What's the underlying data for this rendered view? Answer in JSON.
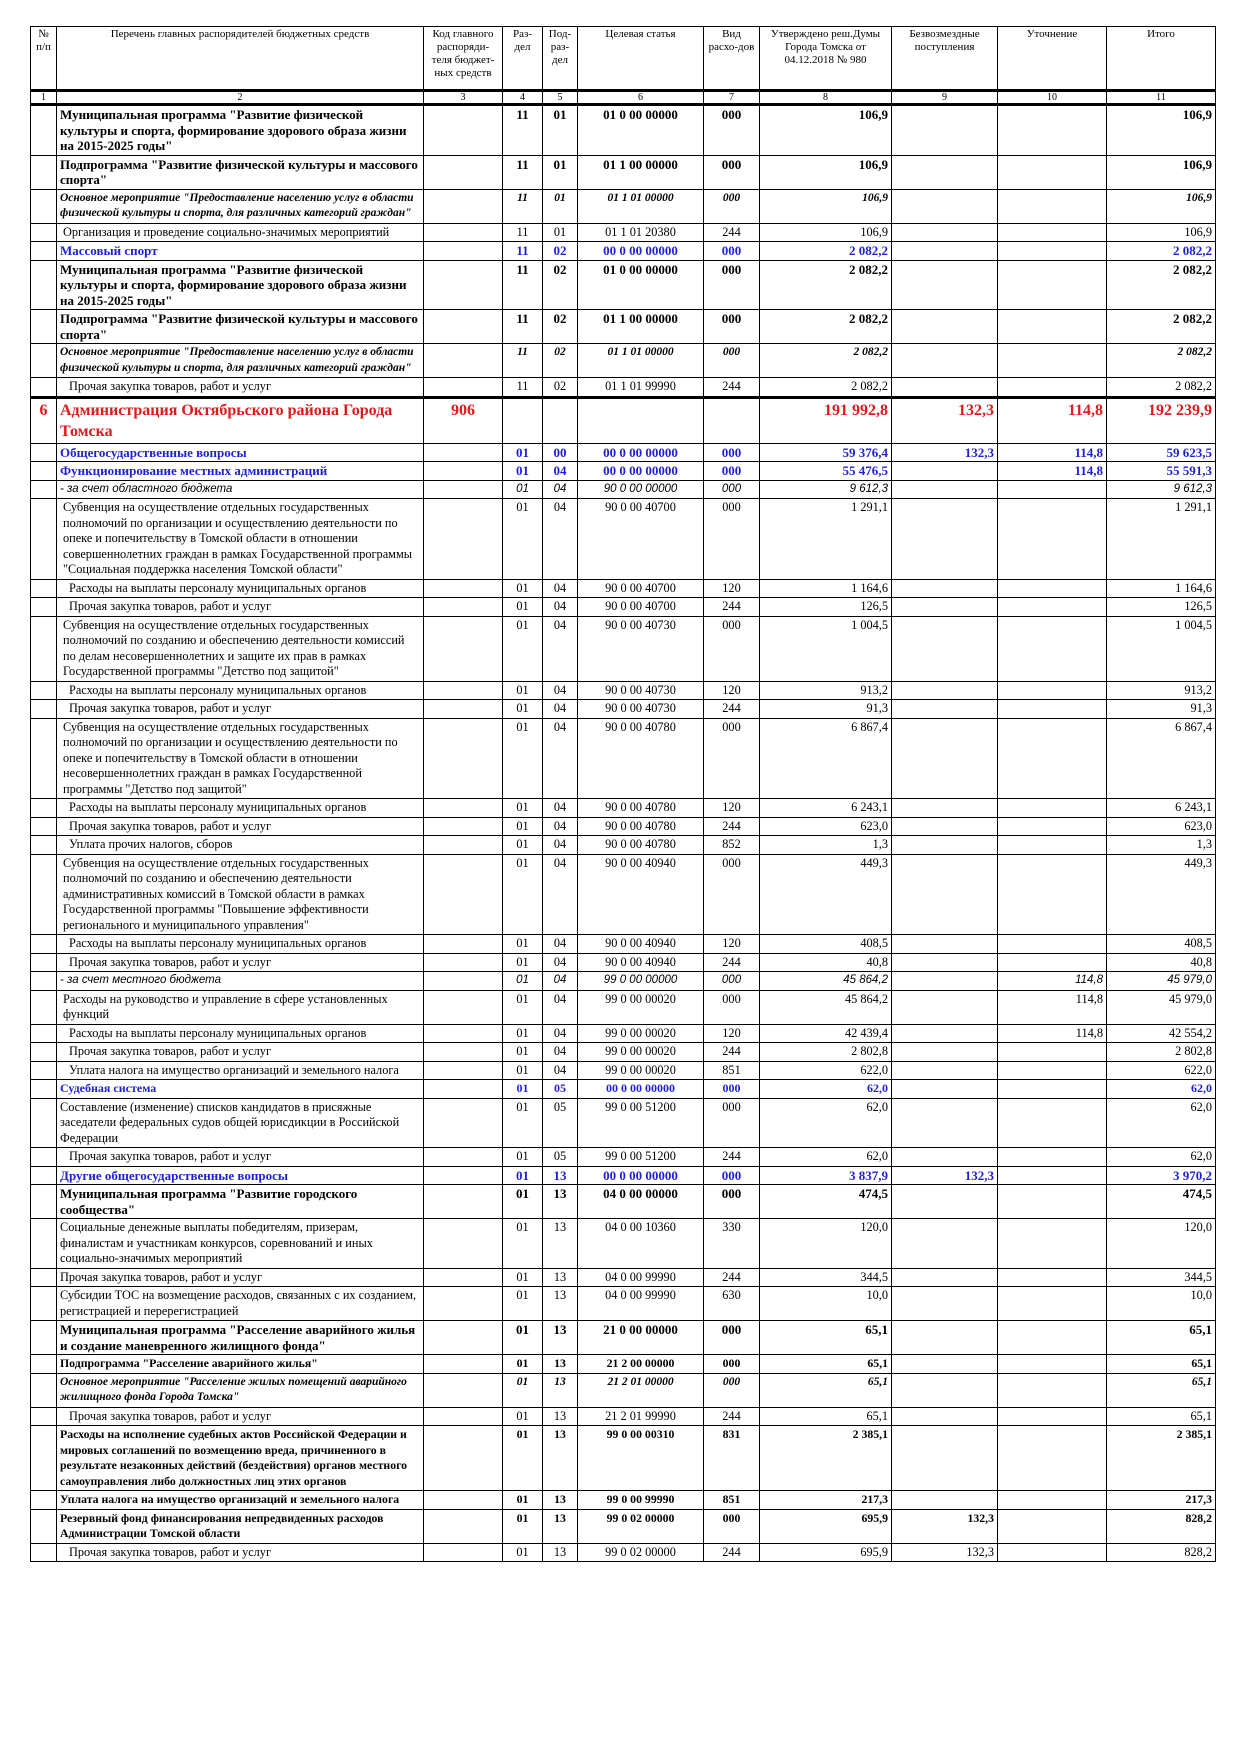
{
  "header": {
    "columns": [
      "№ п/п",
      "Перечень главных распорядителей бюджетных средств",
      "Код главного распоряди-теля бюджет-ных средств",
      "Раз-дел",
      "Под-раз-дел",
      "Целевая статья",
      "Вид расхо-дов",
      "Утверждено реш.Думы Города Томска от 04.12.2018 № 980",
      "Безвозмездные поступления",
      "Уточнение",
      "Итого"
    ],
    "numbers": [
      "1",
      "2",
      "3",
      "4",
      "5",
      "6",
      "7",
      "8",
      "9",
      "10",
      "11"
    ]
  },
  "rows": [
    {
      "style": "bold",
      "cells": [
        null,
        "Муниципальная программа \"Развитие физической культуры и спорта, формирование здорового образа жизни на 2015-2025 годы\"",
        null,
        "11",
        "01",
        "01 0 00 00000",
        "000",
        "106,9",
        null,
        null,
        "106,9"
      ]
    },
    {
      "style": "bold",
      "cells": [
        null,
        "Подпрограмма \"Развитие физической культуры и массового спорта\"",
        null,
        "11",
        "01",
        "01 1 00 00000",
        "000",
        "106,9",
        null,
        null,
        "106,9"
      ]
    },
    {
      "style": "bold-italic",
      "cells": [
        null,
        "Основное мероприятие \"Предоставление населению услуг в области физической культуры и спорта, для различных категорий граждан\"",
        null,
        "11",
        "01",
        "01 1 01 00000",
        "000",
        "106,9",
        null,
        null,
        "106,9"
      ]
    },
    {
      "style": "normal",
      "cells": [
        null,
        "Организация и проведение социально-значимых мероприятий",
        null,
        "11",
        "01",
        "01 1 01 20380",
        "244",
        "106,9",
        null,
        null,
        "106,9"
      ]
    },
    {
      "style": "blue",
      "cells": [
        null,
        "Массовый спорт",
        null,
        "11",
        "02",
        "00 0 00 00000",
        "000",
        "2 082,2",
        null,
        null,
        "2 082,2"
      ]
    },
    {
      "style": "bold",
      "cells": [
        null,
        "Муниципальная программа \"Развитие физической культуры и спорта, формирование здорового образа жизни на 2015-2025 годы\"",
        null,
        "11",
        "02",
        "01 0 00 00000",
        "000",
        "2 082,2",
        null,
        null,
        "2 082,2"
      ]
    },
    {
      "style": "bold",
      "cells": [
        null,
        "Подпрограмма \"Развитие физической культуры и массового спорта\"",
        null,
        "11",
        "02",
        "01 1 00 00000",
        "000",
        "2 082,2",
        null,
        null,
        "2 082,2"
      ]
    },
    {
      "style": "bold-italic",
      "cells": [
        null,
        "Основное мероприятие \"Предоставление населению услуг в области физической культуры и спорта, для различных категорий граждан\"",
        null,
        "11",
        "02",
        "01 1 01 00000",
        "000",
        "2 082,2",
        null,
        null,
        "2 082,2"
      ]
    },
    {
      "style": "indent",
      "cells": [
        null,
        "Прочая закупка товаров, работ и услуг",
        null,
        "11",
        "02",
        "01 1 01 99990",
        "244",
        "2 082,2",
        null,
        null,
        "2 082,2"
      ]
    },
    {
      "style": "red",
      "cells": [
        "6",
        "Администрация Октябрьского района Города Томска",
        "906",
        null,
        null,
        null,
        null,
        "191 992,8",
        "132,3",
        "114,8",
        "192 239,9"
      ]
    },
    {
      "style": "blue",
      "cells": [
        null,
        "Общегосударственные вопросы",
        null,
        "01",
        "00",
        "00 0 00 00000",
        "000",
        "59 376,4",
        "132,3",
        "114,8",
        "59 623,5"
      ]
    },
    {
      "style": "blue",
      "cells": [
        null,
        "Функционирование местных администраций",
        null,
        "01",
        "04",
        "00 0 00 00000",
        "000",
        "55 476,5",
        null,
        "114,8",
        "55 591,3"
      ]
    },
    {
      "style": "italic",
      "cells": [
        null,
        "- за счет областного бюджета",
        null,
        "01",
        "04",
        "90 0 00 00000",
        "000",
        "9 612,3",
        null,
        null,
        "9 612,3"
      ]
    },
    {
      "style": "normal",
      "cells": [
        null,
        "Субвенция на осуществление отдельных государственных полномочий по организации и осуществлению деятельности по опеке и попечительству в Томской области в отношении совершеннолетних граждан в рамках Государственной программы \"Социальная поддержка населения Томской области\"",
        null,
        "01",
        "04",
        "90 0 00 40700",
        "000",
        "1 291,1",
        null,
        null,
        "1 291,1"
      ]
    },
    {
      "style": "indent",
      "cells": [
        null,
        "Расходы на выплаты персоналу муниципальных органов",
        null,
        "01",
        "04",
        "90 0 00 40700",
        "120",
        "1 164,6",
        null,
        null,
        "1 164,6"
      ]
    },
    {
      "style": "indent",
      "cells": [
        null,
        "Прочая закупка товаров, работ и услуг",
        null,
        "01",
        "04",
        "90 0 00 40700",
        "244",
        "126,5",
        null,
        null,
        "126,5"
      ]
    },
    {
      "style": "normal",
      "cells": [
        null,
        "Субвенция на осуществление отдельных государственных полномочий по созданию и обеспечению деятельности комиссий по делам несовершеннолетних и защите их прав в рамках Государственной программы \"Детство под защитой\"",
        null,
        "01",
        "04",
        "90 0 00 40730",
        "000",
        "1 004,5",
        null,
        null,
        "1 004,5"
      ]
    },
    {
      "style": "indent",
      "cells": [
        null,
        "Расходы на выплаты персоналу муниципальных органов",
        null,
        "01",
        "04",
        "90 0 00 40730",
        "120",
        "913,2",
        null,
        null,
        "913,2"
      ]
    },
    {
      "style": "indent",
      "cells": [
        null,
        "Прочая закупка товаров, работ и услуг",
        null,
        "01",
        "04",
        "90 0 00 40730",
        "244",
        "91,3",
        null,
        null,
        "91,3"
      ]
    },
    {
      "style": "normal",
      "cells": [
        null,
        "Субвенция на осуществление отдельных государственных полномочий по организации и осуществлению деятельности по опеке и попечительству в Томской области в отношении несовершеннолетних граждан в рамках Государственной программы \"Детство под защитой\"",
        null,
        "01",
        "04",
        "90 0 00 40780",
        "000",
        "6 867,4",
        null,
        null,
        "6 867,4"
      ]
    },
    {
      "style": "indent",
      "cells": [
        null,
        "Расходы на выплаты персоналу муниципальных органов",
        null,
        "01",
        "04",
        "90 0 00 40780",
        "120",
        "6 243,1",
        null,
        null,
        "6 243,1"
      ]
    },
    {
      "style": "indent",
      "cells": [
        null,
        "Прочая закупка товаров, работ и услуг",
        null,
        "01",
        "04",
        "90 0 00 40780",
        "244",
        "623,0",
        null,
        null,
        "623,0"
      ]
    },
    {
      "style": "indent",
      "cells": [
        null,
        "Уплата прочих налогов, сборов",
        null,
        "01",
        "04",
        "90 0 00 40780",
        "852",
        "1,3",
        null,
        null,
        "1,3"
      ]
    },
    {
      "style": "normal",
      "cells": [
        null,
        "Субвенция на осуществление отдельных государственных полномочий по созданию и обеспечению деятельности административных комиссий в Томской области в рамках Государственной программы \"Повышение эффективности регионального и муниципального управления\"",
        null,
        "01",
        "04",
        "90 0 00 40940",
        "000",
        "449,3",
        null,
        null,
        "449,3"
      ]
    },
    {
      "style": "indent",
      "cells": [
        null,
        "Расходы на выплаты персоналу муниципальных органов",
        null,
        "01",
        "04",
        "90 0 00 40940",
        "120",
        "408,5",
        null,
        null,
        "408,5"
      ]
    },
    {
      "style": "indent",
      "cells": [
        null,
        "Прочая закупка товаров, работ и услуг",
        null,
        "01",
        "04",
        "90 0 00 40940",
        "244",
        "40,8",
        null,
        null,
        "40,8"
      ]
    },
    {
      "style": "italic",
      "cells": [
        null,
        "- за счет местного бюджета",
        null,
        "01",
        "04",
        "99 0 00 00000",
        "000",
        "45 864,2",
        null,
        "114,8",
        "45 979,0"
      ]
    },
    {
      "style": "normal",
      "cells": [
        null,
        "Расходы на руководство и управление в сфере установленных функций",
        null,
        "01",
        "04",
        "99 0 00 00020",
        "000",
        "45 864,2",
        null,
        "114,8",
        "45 979,0"
      ]
    },
    {
      "style": "indent",
      "cells": [
        null,
        "Расходы на выплаты персоналу муниципальных органов",
        null,
        "01",
        "04",
        "99 0 00 00020",
        "120",
        "42 439,4",
        null,
        "114,8",
        "42 554,2"
      ]
    },
    {
      "style": "indent",
      "cells": [
        null,
        "Прочая закупка товаров, работ и услуг",
        null,
        "01",
        "04",
        "99 0 00 00020",
        "244",
        "2 802,8",
        null,
        null,
        "2 802,8"
      ]
    },
    {
      "style": "indent",
      "cells": [
        null,
        "Уплата налога на имущество организаций и земельного налога",
        null,
        "01",
        "04",
        "99 0 00 00020",
        "851",
        "622,0",
        null,
        null,
        "622,0"
      ]
    },
    {
      "style": "blue-small",
      "cells": [
        null,
        "Судебная система",
        null,
        "01",
        "05",
        "00 0 00 00000",
        "000",
        "62,0",
        null,
        null,
        "62,0"
      ]
    },
    {
      "style": "flat",
      "cells": [
        null,
        "Составление (изменение) списков кандидатов в присяжные заседатели федеральных судов общей юрисдикции в Российской Федерации",
        null,
        "01",
        "05",
        "99 0 00 51200",
        "000",
        "62,0",
        null,
        null,
        "62,0"
      ]
    },
    {
      "style": "indent",
      "cells": [
        null,
        "Прочая закупка товаров, работ и услуг",
        null,
        "01",
        "05",
        "99 0 00 51200",
        "244",
        "62,0",
        null,
        null,
        "62,0"
      ]
    },
    {
      "style": "blue",
      "cells": [
        null,
        "Другие общегосударственные вопросы",
        null,
        "01",
        "13",
        "00 0 00 00000",
        "000",
        "3 837,9",
        "132,3",
        null,
        "3 970,2"
      ]
    },
    {
      "style": "bold",
      "cells": [
        null,
        "Муниципальная программа \"Развитие городского сообщества\"",
        null,
        "01",
        "13",
        "04 0 00 00000",
        "000",
        "474,5",
        null,
        null,
        "474,5"
      ]
    },
    {
      "style": "flat",
      "cells": [
        null,
        "Социальные денежные выплаты победителям, призерам, финалистам и участникам конкурсов, соревнований и иных социально-значимых мероприятий",
        null,
        "01",
        "13",
        "04 0 00 10360",
        "330",
        "120,0",
        null,
        null,
        "120,0"
      ]
    },
    {
      "style": "flat",
      "cells": [
        null,
        "Прочая закупка товаров, работ и услуг",
        null,
        "01",
        "13",
        "04 0 00 99990",
        "244",
        "344,5",
        null,
        null,
        "344,5"
      ]
    },
    {
      "style": "flat",
      "cells": [
        null,
        "Субсидии ТОС на возмещение расходов, связанных с их созданием, регистрацией и перерегистрацией",
        null,
        "01",
        "13",
        "04 0 00 99990",
        "630",
        "10,0",
        null,
        null,
        "10,0"
      ]
    },
    {
      "style": "bold",
      "cells": [
        null,
        "Муниципальная программа \"Расселение аварийного жилья и создание маневренного жилищного фонда\"",
        null,
        "01",
        "13",
        "21 0 00 00000",
        "000",
        "65,1",
        null,
        null,
        "65,1"
      ]
    },
    {
      "style": "bold-small",
      "cells": [
        null,
        "Подпрограмма \"Расселение аварийного жилья\"",
        null,
        "01",
        "13",
        "21 2 00 00000",
        "000",
        "65,1",
        null,
        null,
        "65,1"
      ]
    },
    {
      "style": "bold-italic",
      "cells": [
        null,
        "Основное мероприятие \"Расселение жилых помещений аварийного жилищного фонда Города Томска\"",
        null,
        "01",
        "13",
        "21 2 01 00000",
        "000",
        "65,1",
        null,
        null,
        "65,1"
      ]
    },
    {
      "style": "indent",
      "cells": [
        null,
        "Прочая закупка товаров, работ и услуг",
        null,
        "01",
        "13",
        "21 2 01 99990",
        "244",
        "65,1",
        null,
        null,
        "65,1"
      ]
    },
    {
      "style": "bold-small",
      "cells": [
        null,
        "Расходы на исполнение судебных актов Российской Федерации и мировых соглашений по возмещению вреда, причиненного в результате незаконных действий (бездействия) органов местного самоуправления либо должностных лиц этих органов",
        null,
        "01",
        "13",
        "99 0 00 00310",
        "831",
        "2 385,1",
        null,
        null,
        "2 385,1"
      ]
    },
    {
      "style": "bold-small",
      "cells": [
        null,
        "Уплата налога на имущество организаций и земельного налога",
        null,
        "01",
        "13",
        "99 0 00 99990",
        "851",
        "217,3",
        null,
        null,
        "217,3"
      ]
    },
    {
      "style": "bold-small",
      "cells": [
        null,
        "Резервный фонд финансирования непредвиденных расходов Администрации Томской области",
        null,
        "01",
        "13",
        "99 0 02 00000",
        "000",
        "695,9",
        "132,3",
        null,
        "828,2"
      ]
    },
    {
      "style": "indent",
      "cells": [
        null,
        "Прочая закупка товаров, работ и услуг",
        null,
        "01",
        "13",
        "99 0 02 00000",
        "244",
        "695,9",
        "132,3",
        null,
        "828,2"
      ]
    }
  ]
}
